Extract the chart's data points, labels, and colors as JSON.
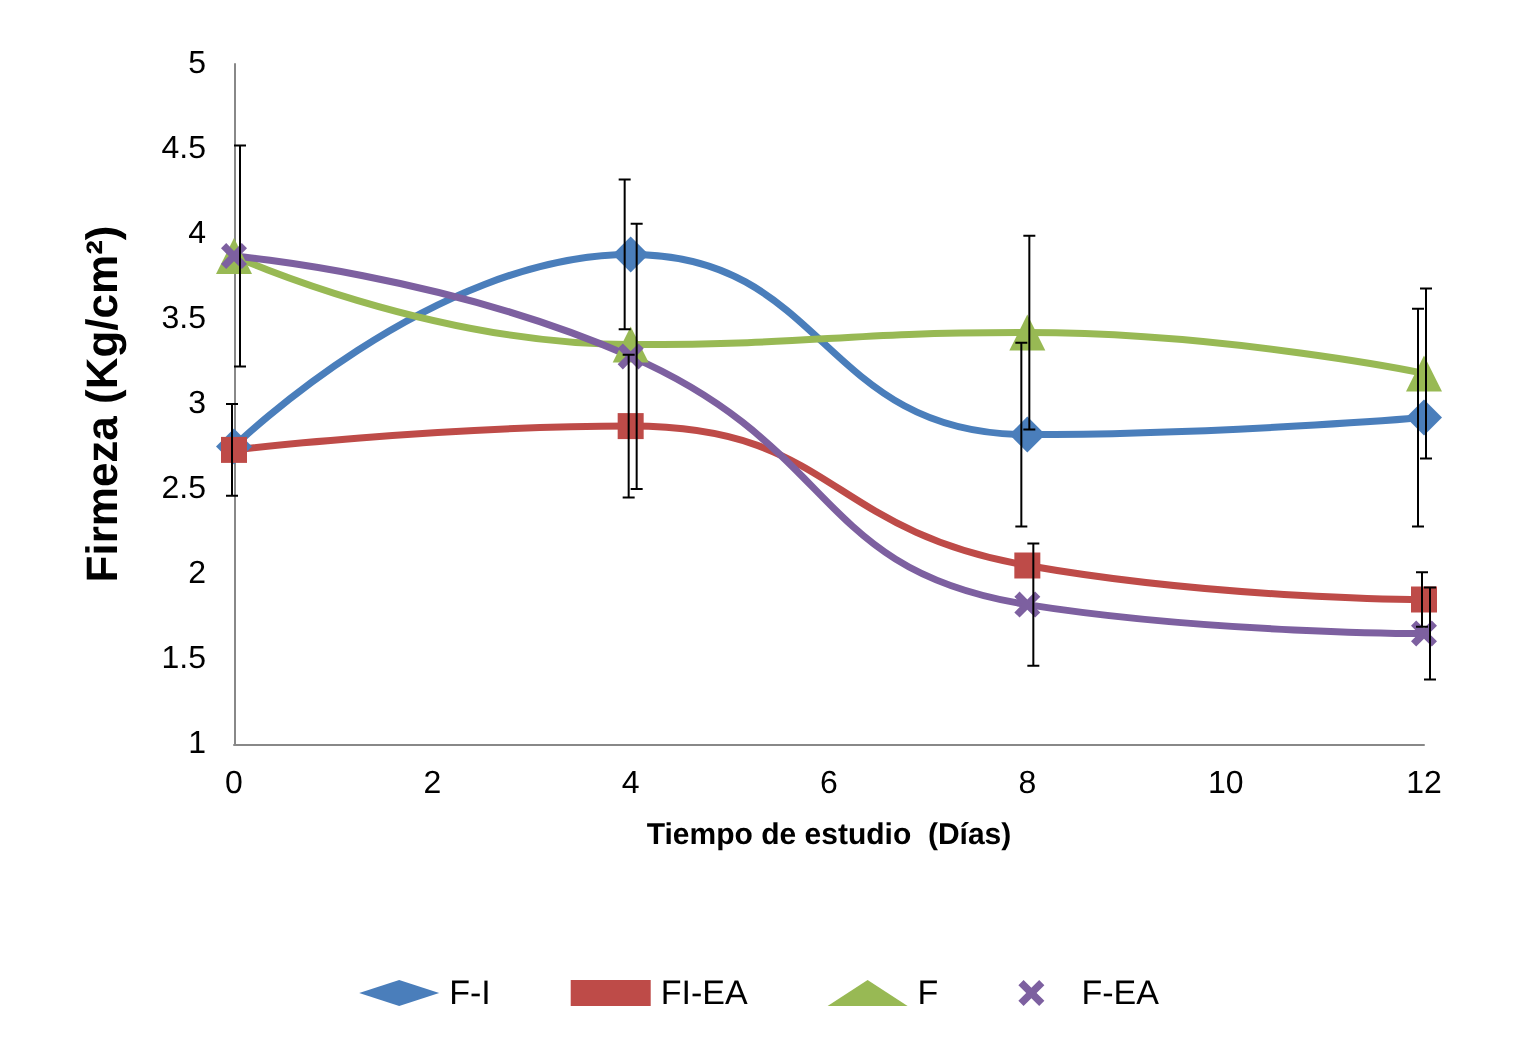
{
  "chart_data": {
    "type": "line",
    "xlabel": "Tiempo de estudio  (Días)",
    "ylabel": "Firmeza (Kg/cm²)",
    "x": [
      0,
      4,
      8,
      12
    ],
    "series": [
      {
        "name": "F-I",
        "color": "#4a7ebb",
        "marker": "diamond",
        "values": [
          2.75,
          3.88,
          2.82,
          2.92
        ],
        "errors": [
          null,
          0.44,
          0.54,
          0.64
        ]
      },
      {
        "name": "FI-EA",
        "color": "#be4b48",
        "marker": "square",
        "values": [
          2.73,
          2.87,
          2.05,
          1.85
        ],
        "errors": [
          0.27,
          0.42,
          null,
          0.16
        ]
      },
      {
        "name": "F",
        "color": "#98b954",
        "marker": "triangle",
        "values": [
          3.87,
          3.35,
          3.42,
          3.18
        ],
        "errors": [
          null,
          null,
          0.57,
          0.5
        ]
      },
      {
        "name": "F-EA",
        "color": "#7d60a0",
        "marker": "cross",
        "values": [
          3.87,
          3.28,
          1.82,
          1.65
        ],
        "errors": [
          0.65,
          0.78,
          0.36,
          0.27
        ]
      }
    ],
    "xlim": [
      0,
      12
    ],
    "xticks": [
      0,
      2,
      4,
      6,
      8,
      10,
      12
    ],
    "ylim": [
      1,
      5
    ],
    "yticks": [
      1,
      1.5,
      2,
      2.5,
      3,
      3.5,
      4,
      4.5,
      5
    ],
    "grid": false,
    "legend": "bottom",
    "line_style": "solid"
  }
}
